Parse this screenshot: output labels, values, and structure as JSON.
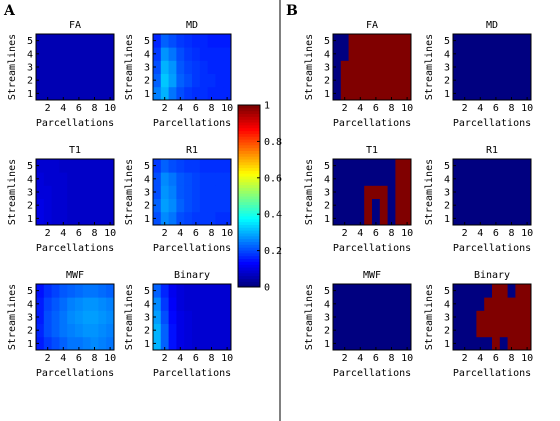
{
  "panels": [
    {
      "label": "A"
    },
    {
      "label": "B"
    }
  ],
  "chart_data": [
    {
      "panel": "A",
      "type": "heatmap",
      "title": "FA",
      "xlabel": "Parcellations",
      "ylabel": "Streamlines",
      "x": [
        1,
        2,
        3,
        4,
        5,
        6,
        7,
        8,
        9,
        10
      ],
      "y": [
        1,
        2,
        3,
        4,
        5
      ],
      "xticks": [
        "2",
        "4",
        "6",
        "8",
        "10"
      ],
      "yticks": [
        "1",
        "2",
        "3",
        "4",
        "5"
      ],
      "colormap": "jet",
      "zlim": [
        0,
        1
      ],
      "z": [
        [
          0.05,
          0.05,
          0.05,
          0.05,
          0.05,
          0.05,
          0.05,
          0.05,
          0.05,
          0.05
        ],
        [
          0.05,
          0.05,
          0.05,
          0.05,
          0.05,
          0.05,
          0.05,
          0.05,
          0.05,
          0.05
        ],
        [
          0.05,
          0.05,
          0.05,
          0.05,
          0.05,
          0.05,
          0.05,
          0.05,
          0.05,
          0.05
        ],
        [
          0.05,
          0.05,
          0.05,
          0.05,
          0.05,
          0.05,
          0.05,
          0.05,
          0.05,
          0.05
        ],
        [
          0.05,
          0.05,
          0.05,
          0.05,
          0.05,
          0.05,
          0.05,
          0.05,
          0.05,
          0.05
        ]
      ]
    },
    {
      "panel": "A",
      "type": "heatmap",
      "title": "MD",
      "xlabel": "Parcellations",
      "ylabel": "Streamlines",
      "x": [
        1,
        2,
        3,
        4,
        5,
        6,
        7,
        8,
        9,
        10
      ],
      "y": [
        1,
        2,
        3,
        4,
        5
      ],
      "xticks": [
        "2",
        "4",
        "6",
        "8",
        "10"
      ],
      "yticks": [
        "1",
        "2",
        "3",
        "4",
        "5"
      ],
      "colormap": "jet",
      "zlim": [
        0,
        1
      ],
      "z": [
        [
          0.25,
          0.3,
          0.24,
          0.2,
          0.18,
          0.17,
          0.17,
          0.16,
          0.16,
          0.16
        ],
        [
          0.22,
          0.32,
          0.28,
          0.22,
          0.2,
          0.18,
          0.17,
          0.17,
          0.16,
          0.16
        ],
        [
          0.2,
          0.3,
          0.27,
          0.21,
          0.19,
          0.18,
          0.17,
          0.16,
          0.16,
          0.16
        ],
        [
          0.18,
          0.27,
          0.24,
          0.2,
          0.18,
          0.17,
          0.16,
          0.16,
          0.16,
          0.16
        ],
        [
          0.16,
          0.22,
          0.2,
          0.18,
          0.17,
          0.16,
          0.16,
          0.15,
          0.15,
          0.15
        ]
      ]
    },
    {
      "panel": "A",
      "type": "heatmap",
      "title": "T1",
      "xlabel": "Parcellations",
      "ylabel": "Streamlines",
      "x": [
        1,
        2,
        3,
        4,
        5,
        6,
        7,
        8,
        9,
        10
      ],
      "y": [
        1,
        2,
        3,
        4,
        5
      ],
      "xticks": [
        "2",
        "4",
        "6",
        "8",
        "10"
      ],
      "yticks": [
        "1",
        "2",
        "3",
        "4",
        "5"
      ],
      "colormap": "jet",
      "zlim": [
        0,
        1
      ],
      "z": [
        [
          0.1,
          0.09,
          0.08,
          0.08,
          0.07,
          0.07,
          0.07,
          0.07,
          0.07,
          0.07
        ],
        [
          0.1,
          0.09,
          0.08,
          0.08,
          0.07,
          0.07,
          0.07,
          0.07,
          0.07,
          0.07
        ],
        [
          0.09,
          0.09,
          0.08,
          0.08,
          0.07,
          0.07,
          0.07,
          0.07,
          0.07,
          0.07
        ],
        [
          0.09,
          0.08,
          0.08,
          0.08,
          0.07,
          0.07,
          0.07,
          0.07,
          0.07,
          0.07
        ],
        [
          0.08,
          0.08,
          0.08,
          0.07,
          0.07,
          0.07,
          0.07,
          0.07,
          0.07,
          0.07
        ]
      ]
    },
    {
      "panel": "A",
      "type": "heatmap",
      "title": "R1",
      "xlabel": "Parcellations",
      "ylabel": "Streamlines",
      "x": [
        1,
        2,
        3,
        4,
        5,
        6,
        7,
        8,
        9,
        10
      ],
      "y": [
        1,
        2,
        3,
        4,
        5
      ],
      "xticks": [
        "2",
        "4",
        "6",
        "8",
        "10"
      ],
      "yticks": [
        "1",
        "2",
        "3",
        "4",
        "5"
      ],
      "colormap": "jet",
      "zlim": [
        0,
        1
      ],
      "z": [
        [
          0.2,
          0.26,
          0.24,
          0.2,
          0.19,
          0.18,
          0.18,
          0.18,
          0.17,
          0.17
        ],
        [
          0.22,
          0.28,
          0.26,
          0.22,
          0.2,
          0.19,
          0.18,
          0.18,
          0.18,
          0.18
        ],
        [
          0.2,
          0.27,
          0.25,
          0.21,
          0.2,
          0.19,
          0.18,
          0.18,
          0.18,
          0.18
        ],
        [
          0.2,
          0.26,
          0.24,
          0.21,
          0.2,
          0.19,
          0.18,
          0.18,
          0.18,
          0.18
        ],
        [
          0.18,
          0.22,
          0.2,
          0.19,
          0.18,
          0.18,
          0.17,
          0.17,
          0.17,
          0.17
        ]
      ]
    },
    {
      "panel": "A",
      "type": "heatmap",
      "title": "MWF",
      "xlabel": "Parcellations",
      "ylabel": "Streamlines",
      "x": [
        1,
        2,
        3,
        4,
        5,
        6,
        7,
        8,
        9,
        10
      ],
      "y": [
        1,
        2,
        3,
        4,
        5
      ],
      "xticks": [
        "2",
        "4",
        "6",
        "8",
        "10"
      ],
      "yticks": [
        "1",
        "2",
        "3",
        "4",
        "5"
      ],
      "colormap": "jet",
      "zlim": [
        0,
        1
      ],
      "z": [
        [
          0.15,
          0.18,
          0.2,
          0.22,
          0.24,
          0.24,
          0.25,
          0.26,
          0.25,
          0.24
        ],
        [
          0.16,
          0.2,
          0.22,
          0.24,
          0.25,
          0.26,
          0.27,
          0.27,
          0.26,
          0.25
        ],
        [
          0.15,
          0.2,
          0.22,
          0.24,
          0.26,
          0.27,
          0.28,
          0.28,
          0.27,
          0.26
        ],
        [
          0.15,
          0.19,
          0.21,
          0.23,
          0.25,
          0.26,
          0.27,
          0.27,
          0.26,
          0.25
        ],
        [
          0.14,
          0.17,
          0.19,
          0.21,
          0.22,
          0.23,
          0.24,
          0.24,
          0.23,
          0.22
        ]
      ]
    },
    {
      "panel": "A",
      "type": "heatmap",
      "title": "Binary",
      "xlabel": "Parcellations",
      "ylabel": "Streamlines",
      "x": [
        1,
        2,
        3,
        4,
        5,
        6,
        7,
        8,
        9,
        10
      ],
      "y": [
        1,
        2,
        3,
        4,
        5
      ],
      "xticks": [
        "2",
        "4",
        "6",
        "8",
        "10"
      ],
      "yticks": [
        "1",
        "2",
        "3",
        "4",
        "5"
      ],
      "colormap": "jet",
      "zlim": [
        0,
        1
      ],
      "z": [
        [
          0.3,
          0.22,
          0.14,
          0.1,
          0.09,
          0.08,
          0.08,
          0.08,
          0.08,
          0.08
        ],
        [
          0.3,
          0.22,
          0.14,
          0.1,
          0.09,
          0.08,
          0.08,
          0.08,
          0.08,
          0.08
        ],
        [
          0.28,
          0.2,
          0.13,
          0.1,
          0.09,
          0.08,
          0.08,
          0.08,
          0.08,
          0.08
        ],
        [
          0.26,
          0.18,
          0.12,
          0.09,
          0.08,
          0.08,
          0.08,
          0.08,
          0.08,
          0.08
        ],
        [
          0.22,
          0.16,
          0.11,
          0.09,
          0.08,
          0.08,
          0.08,
          0.08,
          0.08,
          0.08
        ]
      ]
    },
    {
      "panel": "B",
      "type": "heatmap",
      "title": "FA",
      "xlabel": "Parcellations",
      "ylabel": "Streamlines",
      "x": [
        1,
        2,
        3,
        4,
        5,
        6,
        7,
        8,
        9,
        10
      ],
      "y": [
        1,
        2,
        3,
        4,
        5
      ],
      "xticks": [
        "2",
        "4",
        "6",
        "8",
        "10"
      ],
      "yticks": [
        "1",
        "2",
        "3",
        "4",
        "5"
      ],
      "colormap": "jet",
      "zlim": [
        0,
        1
      ],
      "z": [
        [
          0,
          1,
          1,
          1,
          1,
          1,
          1,
          1,
          1,
          1
        ],
        [
          0,
          1,
          1,
          1,
          1,
          1,
          1,
          1,
          1,
          1
        ],
        [
          0,
          1,
          1,
          1,
          1,
          1,
          1,
          1,
          1,
          1
        ],
        [
          0,
          0,
          1,
          1,
          1,
          1,
          1,
          1,
          1,
          1
        ],
        [
          0,
          0,
          1,
          1,
          1,
          1,
          1,
          1,
          1,
          1
        ]
      ]
    },
    {
      "panel": "B",
      "type": "heatmap",
      "title": "MD",
      "xlabel": "Parcellations",
      "ylabel": "Streamlines",
      "x": [
        1,
        2,
        3,
        4,
        5,
        6,
        7,
        8,
        9,
        10
      ],
      "y": [
        1,
        2,
        3,
        4,
        5
      ],
      "xticks": [
        "2",
        "4",
        "6",
        "8",
        "10"
      ],
      "yticks": [
        "1",
        "2",
        "3",
        "4",
        "5"
      ],
      "colormap": "jet",
      "zlim": [
        0,
        1
      ],
      "z": [
        [
          0,
          0,
          0,
          0,
          0,
          0,
          0,
          0,
          0,
          0
        ],
        [
          0,
          0,
          0,
          0,
          0,
          0,
          0,
          0,
          0,
          0
        ],
        [
          0,
          0,
          0,
          0,
          0,
          0,
          0,
          0,
          0,
          0
        ],
        [
          0,
          0,
          0,
          0,
          0,
          0,
          0,
          0,
          0,
          0
        ],
        [
          0,
          0,
          0,
          0,
          0,
          0,
          0,
          0,
          0,
          0
        ]
      ]
    },
    {
      "panel": "B",
      "type": "heatmap",
      "title": "T1",
      "xlabel": "Parcellations",
      "ylabel": "Streamlines",
      "x": [
        1,
        2,
        3,
        4,
        5,
        6,
        7,
        8,
        9,
        10
      ],
      "y": [
        1,
        2,
        3,
        4,
        5
      ],
      "xticks": [
        "2",
        "4",
        "6",
        "8",
        "10"
      ],
      "yticks": [
        "1",
        "2",
        "3",
        "4",
        "5"
      ],
      "colormap": "jet",
      "zlim": [
        0,
        1
      ],
      "z": [
        [
          0,
          0,
          0,
          0,
          1,
          0,
          1,
          0,
          1,
          1
        ],
        [
          0,
          0,
          0,
          0,
          1,
          0,
          1,
          0,
          1,
          1
        ],
        [
          0,
          0,
          0,
          0,
          1,
          1,
          1,
          0,
          1,
          1
        ],
        [
          0,
          0,
          0,
          0,
          0,
          0,
          0,
          0,
          1,
          1
        ],
        [
          0,
          0,
          0,
          0,
          0,
          0,
          0,
          0,
          1,
          1
        ]
      ]
    },
    {
      "panel": "B",
      "type": "heatmap",
      "title": "R1",
      "xlabel": "Parcellations",
      "ylabel": "Streamlines",
      "x": [
        1,
        2,
        3,
        4,
        5,
        6,
        7,
        8,
        9,
        10
      ],
      "y": [
        1,
        2,
        3,
        4,
        5
      ],
      "xticks": [
        "2",
        "4",
        "6",
        "8",
        "10"
      ],
      "yticks": [
        "1",
        "2",
        "3",
        "4",
        "5"
      ],
      "colormap": "jet",
      "zlim": [
        0,
        1
      ],
      "z": [
        [
          0,
          0,
          0,
          0,
          0,
          0,
          0,
          0,
          0,
          0
        ],
        [
          0,
          0,
          0,
          0,
          0,
          0,
          0,
          0,
          0,
          0
        ],
        [
          0,
          0,
          0,
          0,
          0,
          0,
          0,
          0,
          0,
          0
        ],
        [
          0,
          0,
          0,
          0,
          0,
          0,
          0,
          0,
          0,
          0
        ],
        [
          0,
          0,
          0,
          0,
          0,
          0,
          0,
          0,
          0,
          0
        ]
      ]
    },
    {
      "panel": "B",
      "type": "heatmap",
      "title": "MWF",
      "xlabel": "Parcellations",
      "ylabel": "Streamlines",
      "x": [
        1,
        2,
        3,
        4,
        5,
        6,
        7,
        8,
        9,
        10
      ],
      "y": [
        1,
        2,
        3,
        4,
        5
      ],
      "xticks": [
        "2",
        "4",
        "6",
        "8",
        "10"
      ],
      "yticks": [
        "1",
        "2",
        "3",
        "4",
        "5"
      ],
      "colormap": "jet",
      "zlim": [
        0,
        1
      ],
      "z": [
        [
          0,
          0,
          0,
          0,
          0,
          0,
          0,
          0,
          0,
          0
        ],
        [
          0,
          0,
          0,
          0,
          0,
          0,
          0,
          0,
          0,
          0
        ],
        [
          0,
          0,
          0,
          0,
          0,
          0,
          0,
          0,
          0,
          0
        ],
        [
          0,
          0,
          0,
          0,
          0,
          0,
          0,
          0,
          0,
          0
        ],
        [
          0,
          0,
          0,
          0,
          0,
          0,
          0,
          0,
          0,
          0
        ]
      ]
    },
    {
      "panel": "B",
      "type": "heatmap",
      "title": "Binary",
      "xlabel": "Parcellations",
      "ylabel": "Streamlines",
      "x": [
        1,
        2,
        3,
        4,
        5,
        6,
        7,
        8,
        9,
        10
      ],
      "y": [
        1,
        2,
        3,
        4,
        5
      ],
      "xticks": [
        "2",
        "4",
        "6",
        "8",
        "10"
      ],
      "yticks": [
        "1",
        "2",
        "3",
        "4",
        "5"
      ],
      "colormap": "jet",
      "zlim": [
        0,
        1
      ],
      "z": [
        [
          0,
          0,
          0,
          0,
          0,
          1,
          0,
          1,
          1,
          1
        ],
        [
          0,
          0,
          0,
          1,
          1,
          1,
          1,
          1,
          1,
          1
        ],
        [
          0,
          0,
          0,
          1,
          1,
          1,
          1,
          1,
          1,
          1
        ],
        [
          0,
          0,
          0,
          0,
          1,
          1,
          1,
          1,
          1,
          1
        ],
        [
          0,
          0,
          0,
          0,
          0,
          1,
          1,
          0,
          1,
          1
        ]
      ]
    }
  ],
  "colorbar": {
    "colormap": "jet",
    "range": [
      0,
      1
    ],
    "ticks": [
      "0",
      "0.2",
      "0.4",
      "0.6",
      "0.8",
      "1"
    ],
    "tick_values": [
      0,
      0.2,
      0.4,
      0.6,
      0.8,
      1
    ]
  }
}
